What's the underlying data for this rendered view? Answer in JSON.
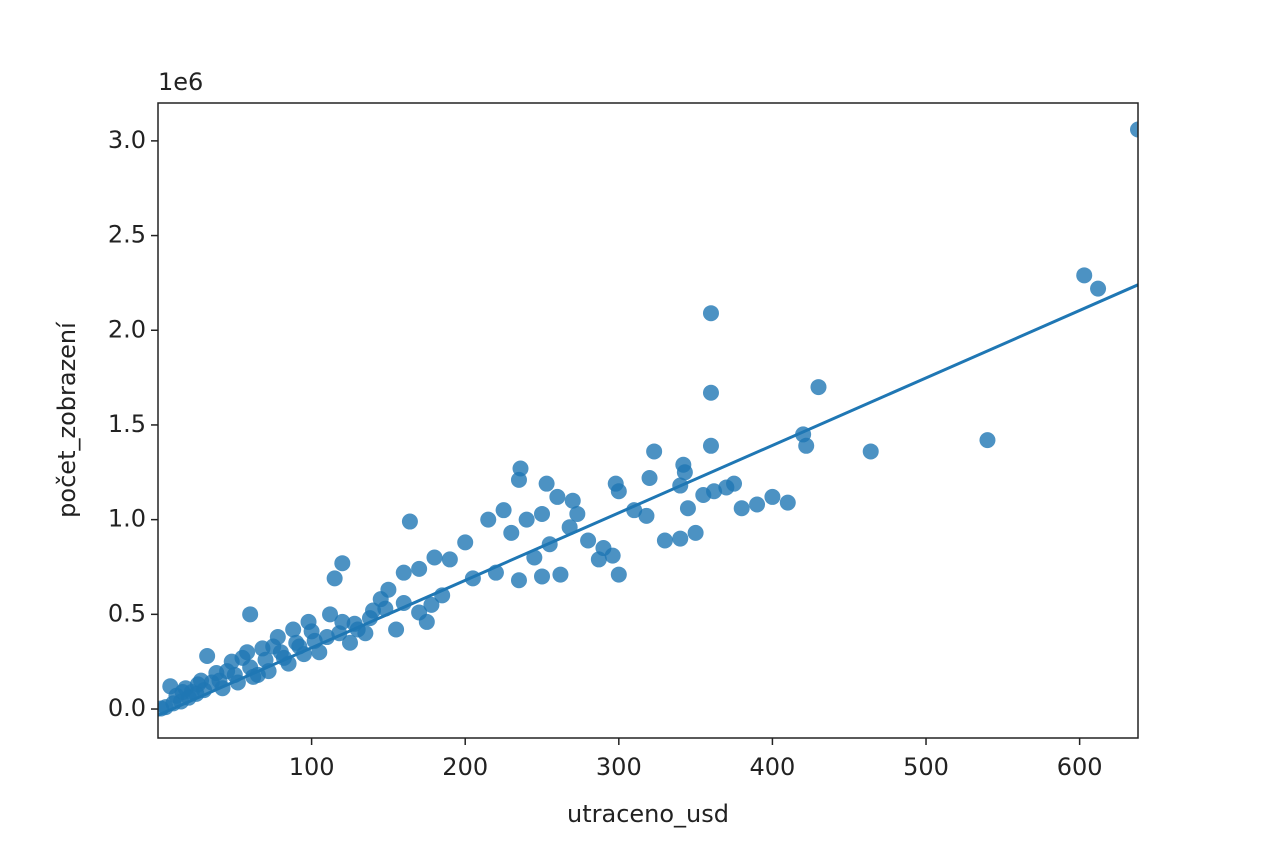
{
  "chart_data": {
    "type": "scatter",
    "xlabel": "utraceno_usd",
    "ylabel": "počet_zobrazení",
    "y_offset_label": "1e6",
    "color": "#1f77b4",
    "grid": false,
    "xlim": [
      0,
      638
    ],
    "ylim": [
      -153000,
      3200000
    ],
    "xticks": [
      100,
      200,
      300,
      400,
      500,
      600
    ],
    "yticks": [
      {
        "value": 0,
        "label": "0.0"
      },
      {
        "value": 500000,
        "label": "0.5"
      },
      {
        "value": 1000000,
        "label": "1.0"
      },
      {
        "value": 1500000,
        "label": "1.5"
      },
      {
        "value": 2000000,
        "label": "2.0"
      },
      {
        "value": 2500000,
        "label": "2.5"
      },
      {
        "value": 3000000,
        "label": "3.0"
      }
    ],
    "x": [
      638,
      603,
      612,
      360,
      360,
      430,
      360,
      420,
      422,
      464,
      540,
      323,
      236,
      235,
      253,
      298,
      342,
      343,
      300,
      320,
      340,
      375,
      362,
      370,
      380,
      390,
      400,
      410,
      355,
      345,
      350,
      340,
      330,
      310,
      318,
      300,
      290,
      280,
      287,
      296,
      270,
      260,
      250,
      240,
      230,
      225,
      215,
      164,
      200,
      190,
      180,
      170,
      160,
      150,
      205,
      220,
      235,
      250,
      262,
      245,
      255,
      268,
      273,
      178,
      185,
      175,
      170,
      160,
      155,
      145,
      140,
      120,
      115,
      60,
      130,
      120,
      110,
      100,
      90,
      95,
      80,
      70,
      75,
      60,
      50,
      55,
      40,
      45,
      30,
      35,
      25,
      20,
      15,
      10,
      5,
      2,
      12,
      18,
      8,
      32,
      65,
      85,
      105,
      125,
      135,
      112,
      98,
      88,
      78,
      68,
      58,
      48,
      38,
      28,
      22,
      42,
      52,
      62,
      72,
      82,
      92,
      102,
      118,
      128,
      138,
      148,
      26,
      16
    ],
    "y": [
      3060000,
      2290000,
      2220000,
      2090000,
      1670000,
      1700000,
      1390000,
      1450000,
      1390000,
      1360000,
      1420000,
      1360000,
      1270000,
      1210000,
      1190000,
      1190000,
      1290000,
      1250000,
      1150000,
      1220000,
      1180000,
      1190000,
      1150000,
      1170000,
      1060000,
      1080000,
      1120000,
      1090000,
      1130000,
      1060000,
      930000,
      900000,
      890000,
      1050000,
      1020000,
      710000,
      850000,
      890000,
      790000,
      810000,
      1100000,
      1120000,
      1030000,
      1000000,
      930000,
      1050000,
      1000000,
      990000,
      880000,
      790000,
      800000,
      740000,
      720000,
      630000,
      690000,
      720000,
      680000,
      700000,
      710000,
      800000,
      870000,
      960000,
      1030000,
      550000,
      600000,
      460000,
      510000,
      560000,
      420000,
      580000,
      520000,
      770000,
      690000,
      500000,
      420000,
      460000,
      380000,
      410000,
      350000,
      290000,
      300000,
      260000,
      330000,
      220000,
      180000,
      270000,
      150000,
      200000,
      100000,
      140000,
      80000,
      60000,
      40000,
      30000,
      10000,
      3000,
      70000,
      110000,
      120000,
      280000,
      180000,
      240000,
      300000,
      350000,
      400000,
      500000,
      460000,
      420000,
      380000,
      320000,
      300000,
      250000,
      190000,
      150000,
      90000,
      110000,
      140000,
      170000,
      200000,
      270000,
      330000,
      360000,
      400000,
      450000,
      480000,
      530000,
      130000,
      90000
    ],
    "fit_line": {
      "x": [
        0,
        638
      ],
      "y": [
        -33000,
        2240000
      ]
    }
  }
}
